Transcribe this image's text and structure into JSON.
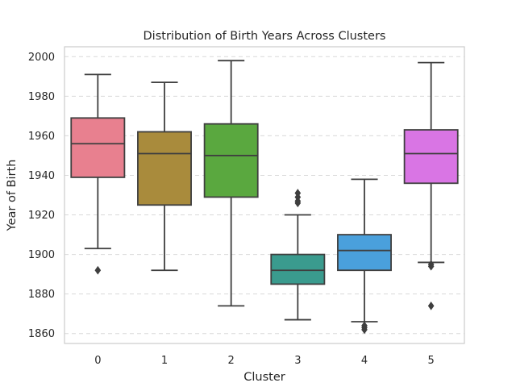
{
  "chart_data": {
    "type": "box",
    "title": "Distribution of Birth Years Across Clusters",
    "xlabel": "Cluster",
    "ylabel": "Year of Birth",
    "ylim": [
      1855,
      2005
    ],
    "yticks": [
      1860,
      1880,
      1900,
      1920,
      1940,
      1960,
      1980,
      2000
    ],
    "grid": "y-dashed",
    "categories": [
      "0",
      "1",
      "2",
      "3",
      "4",
      "5"
    ],
    "series": [
      {
        "category": "0",
        "whisker_low": 1903,
        "q1": 1939,
        "median": 1956,
        "q3": 1969,
        "whisker_high": 1991,
        "outliers": [
          1892
        ],
        "color": "#e8808f"
      },
      {
        "category": "1",
        "whisker_low": 1892,
        "q1": 1925,
        "median": 1951,
        "q3": 1962,
        "whisker_high": 1987,
        "outliers": [],
        "color": "#a98b3c"
      },
      {
        "category": "2",
        "whisker_low": 1874,
        "q1": 1929,
        "median": 1950,
        "q3": 1966,
        "whisker_high": 1998,
        "outliers": [],
        "color": "#5aa83f"
      },
      {
        "category": "3",
        "whisker_low": 1867,
        "q1": 1885,
        "median": 1892,
        "q3": 1900,
        "whisker_high": 1920,
        "outliers": [
          1926,
          1927,
          1929,
          1931
        ],
        "color": "#3a9b8e"
      },
      {
        "category": "4",
        "whisker_low": 1866,
        "q1": 1892,
        "median": 1902,
        "q3": 1910,
        "whisker_high": 1938,
        "outliers": [
          1862,
          1863,
          1864
        ],
        "color": "#4aa0dc"
      },
      {
        "category": "5",
        "whisker_low": 1896,
        "q1": 1936,
        "median": 1951,
        "q3": 1963,
        "whisker_high": 1997,
        "outliers": [
          1874,
          1894,
          1895
        ],
        "color": "#d975e4"
      }
    ]
  }
}
